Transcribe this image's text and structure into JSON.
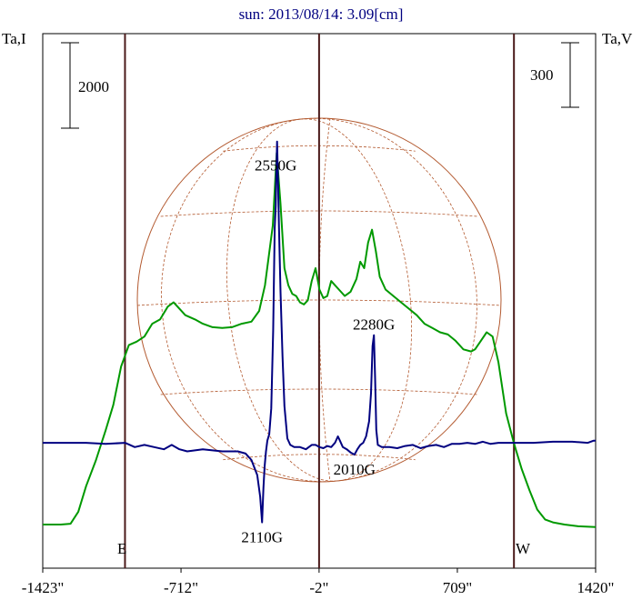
{
  "chart_data": {
    "type": "line",
    "title": "sun: 2013/08/14: 3.09[cm]",
    "ylabel_left": "Ta,I",
    "ylabel_right": "Ta,V",
    "xlim": [
      -1423,
      1420
    ],
    "x_ticks": [
      {
        "value": -1423,
        "label": "-1423\""
      },
      {
        "value": -712,
        "label": "-712\""
      },
      {
        "value": -2,
        "label": "-2\""
      },
      {
        "value": 709,
        "label": "709\""
      },
      {
        "value": 1420,
        "label": "1420\""
      }
    ],
    "vertical_markers": [
      -1000,
      -2,
      1000
    ],
    "limb_labels": {
      "east": "E",
      "west": "W"
    },
    "scale_bars": {
      "left": {
        "label": "2000",
        "units": 2000
      },
      "right": {
        "label": "300",
        "units": 300
      }
    },
    "colors": {
      "stokes_i": "#009900",
      "stokes_v": "#000080",
      "title": "#000080",
      "markers": "#4a1a1a",
      "grid": "#b35a30"
    },
    "series": [
      {
        "key": "I",
        "y_offset": 0,
        "points": [
          [
            -1423,
            0
          ],
          [
            -1330,
            0
          ],
          [
            -1280,
            20
          ],
          [
            -1240,
            300
          ],
          [
            -1200,
            900
          ],
          [
            -1150,
            1500
          ],
          [
            -1100,
            2200
          ],
          [
            -1060,
            2800
          ],
          [
            -1020,
            3700
          ],
          [
            -980,
            4200
          ],
          [
            -940,
            4280
          ],
          [
            -900,
            4400
          ],
          [
            -860,
            4700
          ],
          [
            -820,
            4800
          ],
          [
            -780,
            5100
          ],
          [
            -750,
            5200
          ],
          [
            -720,
            5050
          ],
          [
            -690,
            4900
          ],
          [
            -640,
            4800
          ],
          [
            -600,
            4700
          ],
          [
            -550,
            4620
          ],
          [
            -500,
            4600
          ],
          [
            -450,
            4620
          ],
          [
            -400,
            4700
          ],
          [
            -350,
            4750
          ],
          [
            -310,
            5000
          ],
          [
            -280,
            5600
          ],
          [
            -260,
            6300
          ],
          [
            -240,
            7000
          ],
          [
            -220,
            8700
          ],
          [
            -200,
            7500
          ],
          [
            -180,
            6000
          ],
          [
            -160,
            5600
          ],
          [
            -140,
            5400
          ],
          [
            -120,
            5350
          ],
          [
            -100,
            5200
          ],
          [
            -80,
            5150
          ],
          [
            -60,
            5250
          ],
          [
            -40,
            5700
          ],
          [
            -20,
            6000
          ],
          [
            0,
            5500
          ],
          [
            20,
            5300
          ],
          [
            40,
            5350
          ],
          [
            60,
            5700
          ],
          [
            80,
            5600
          ],
          [
            100,
            5500
          ],
          [
            130,
            5350
          ],
          [
            160,
            5450
          ],
          [
            190,
            5750
          ],
          [
            210,
            6150
          ],
          [
            230,
            6000
          ],
          [
            250,
            6600
          ],
          [
            270,
            6900
          ],
          [
            290,
            6400
          ],
          [
            310,
            5800
          ],
          [
            340,
            5500
          ],
          [
            380,
            5350
          ],
          [
            420,
            5200
          ],
          [
            460,
            5050
          ],
          [
            500,
            4900
          ],
          [
            540,
            4700
          ],
          [
            580,
            4600
          ],
          [
            620,
            4500
          ],
          [
            660,
            4450
          ],
          [
            700,
            4300
          ],
          [
            740,
            4100
          ],
          [
            780,
            4050
          ],
          [
            800,
            4100
          ],
          [
            830,
            4300
          ],
          [
            860,
            4500
          ],
          [
            890,
            4400
          ],
          [
            920,
            3800
          ],
          [
            960,
            2600
          ],
          [
            1000,
            1900
          ],
          [
            1040,
            1300
          ],
          [
            1080,
            800
          ],
          [
            1120,
            350
          ],
          [
            1160,
            120
          ],
          [
            1200,
            50
          ],
          [
            1260,
            0
          ],
          [
            1330,
            -40
          ],
          [
            1420,
            -60
          ]
        ]
      },
      {
        "key": "V",
        "y_offset": 380,
        "points": [
          [
            -1423,
            0
          ],
          [
            -1200,
            0
          ],
          [
            -1100,
            -5
          ],
          [
            -1000,
            0
          ],
          [
            -950,
            -20
          ],
          [
            -900,
            -10
          ],
          [
            -850,
            -20
          ],
          [
            -800,
            -30
          ],
          [
            -760,
            -10
          ],
          [
            -720,
            -30
          ],
          [
            -680,
            -40
          ],
          [
            -600,
            -30
          ],
          [
            -500,
            -40
          ],
          [
            -420,
            -40
          ],
          [
            -380,
            -50
          ],
          [
            -350,
            -80
          ],
          [
            -320,
            -150
          ],
          [
            -305,
            -250
          ],
          [
            -295,
            -370
          ],
          [
            -288,
            -210
          ],
          [
            -282,
            -110
          ],
          [
            -275,
            -40
          ],
          [
            -268,
            10
          ],
          [
            -258,
            40
          ],
          [
            -248,
            160
          ],
          [
            -238,
            520
          ],
          [
            -230,
            1000
          ],
          [
            -225,
            1100
          ],
          [
            -222,
            1240
          ],
          [
            -218,
            1400
          ],
          [
            -214,
            1240
          ],
          [
            -208,
            1000
          ],
          [
            -200,
            700
          ],
          [
            -190,
            400
          ],
          [
            -180,
            170
          ],
          [
            -165,
            20
          ],
          [
            -150,
            -10
          ],
          [
            -130,
            -20
          ],
          [
            -100,
            -20
          ],
          [
            -70,
            -30
          ],
          [
            -40,
            -10
          ],
          [
            -20,
            -10
          ],
          [
            0,
            -20
          ],
          [
            20,
            -25
          ],
          [
            40,
            -15
          ],
          [
            60,
            -20
          ],
          [
            80,
            0
          ],
          [
            95,
            30
          ],
          [
            105,
            10
          ],
          [
            120,
            -20
          ],
          [
            140,
            -30
          ],
          [
            160,
            -45
          ],
          [
            180,
            -55
          ],
          [
            195,
            -30
          ],
          [
            210,
            -10
          ],
          [
            225,
            0
          ],
          [
            240,
            30
          ],
          [
            255,
            100
          ],
          [
            265,
            230
          ],
          [
            273,
            450
          ],
          [
            280,
            500
          ],
          [
            286,
            300
          ],
          [
            292,
            60
          ],
          [
            300,
            -10
          ],
          [
            320,
            -20
          ],
          [
            360,
            -20
          ],
          [
            400,
            -25
          ],
          [
            440,
            -15
          ],
          [
            480,
            -10
          ],
          [
            520,
            -25
          ],
          [
            560,
            -15
          ],
          [
            600,
            -10
          ],
          [
            640,
            -20
          ],
          [
            680,
            -5
          ],
          [
            720,
            -5
          ],
          [
            760,
            0
          ],
          [
            800,
            -5
          ],
          [
            840,
            5
          ],
          [
            880,
            -5
          ],
          [
            920,
            0
          ],
          [
            1000,
            0
          ],
          [
            1100,
            0
          ],
          [
            1200,
            5
          ],
          [
            1300,
            5
          ],
          [
            1380,
            0
          ],
          [
            1410,
            10
          ],
          [
            1420,
            10
          ]
        ]
      }
    ],
    "annotations": [
      {
        "text": "2550G",
        "x": -225,
        "y": 1240,
        "series": "V",
        "pos": "above"
      },
      {
        "text": "2280G",
        "x": 280,
        "y": 500,
        "series": "V",
        "pos": "above"
      },
      {
        "text": "2110G",
        "x": -295,
        "y": -370,
        "series": "V",
        "pos": "below"
      },
      {
        "text": "2010G",
        "x": 180,
        "y": -55,
        "series": "V",
        "pos": "below"
      }
    ]
  }
}
